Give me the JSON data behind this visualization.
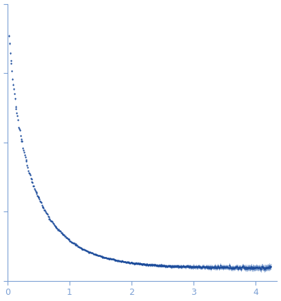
{
  "title": "",
  "xlabel": "",
  "ylabel": "",
  "xlim": [
    0,
    4.35
  ],
  "xticks": [
    0,
    1,
    2,
    3,
    4
  ],
  "axis_color": "#7a9fd4",
  "point_color": "#1a4a9a",
  "error_color": "#6a90c8",
  "background_color": "#ffffff",
  "marker_size": 1.8,
  "dpi": 100,
  "figsize": [
    4.08,
    4.37
  ]
}
